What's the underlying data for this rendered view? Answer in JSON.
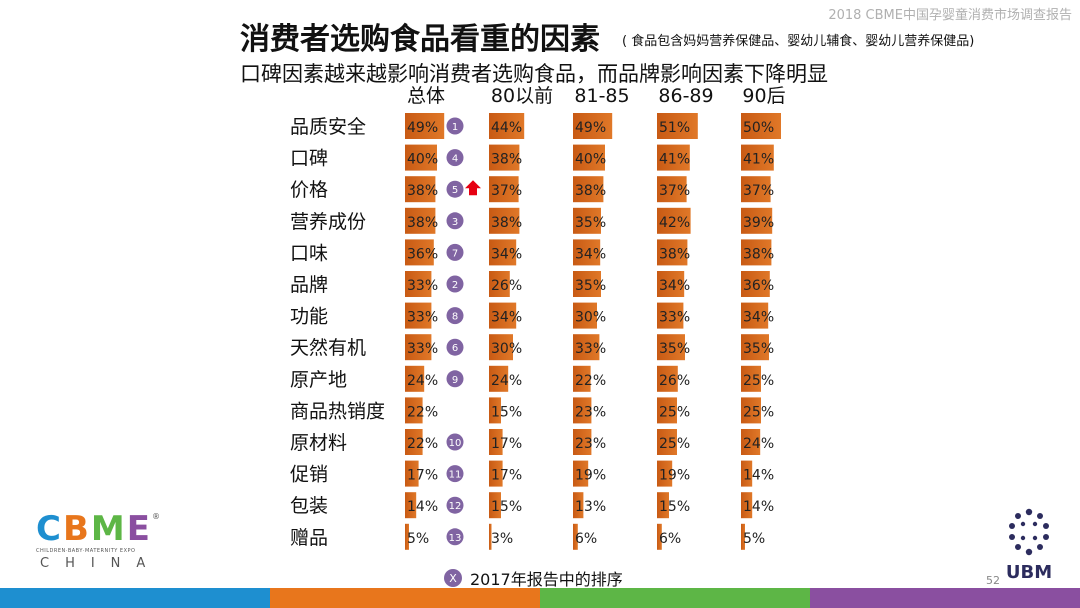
{
  "header": {
    "report_name": "2018 CBME中国孕婴童消费市场调查报告",
    "title": "消费者选购食品看重的因素",
    "title_note": "( 食品包含妈妈营养保健品、婴幼儿辅食、婴幼儿营养保健品)",
    "subtitle": "口碑因素越来越影响消费者选购食品，而品牌影响因素下降明显"
  },
  "chart_data": {
    "type": "bar",
    "orientation": "horizontal",
    "title": "消费者选购食品看重的因素",
    "categories": [
      "品质安全",
      "口碑",
      "价格",
      "营养成份",
      "口味",
      "品牌",
      "功能",
      "天然有机",
      "原产地",
      "商品热销度",
      "原材料",
      "促销",
      "包装",
      "赠品"
    ],
    "series": [
      {
        "name": "总体",
        "values": [
          49,
          40,
          38,
          38,
          36,
          33,
          33,
          33,
          24,
          22,
          22,
          17,
          14,
          5
        ]
      },
      {
        "name": "80以前",
        "values": [
          44,
          38,
          37,
          38,
          34,
          26,
          34,
          30,
          24,
          15,
          17,
          17,
          15,
          3
        ]
      },
      {
        "name": "81-85",
        "values": [
          49,
          40,
          38,
          35,
          34,
          35,
          30,
          33,
          22,
          23,
          23,
          19,
          13,
          6
        ]
      },
      {
        "name": "86-89",
        "values": [
          51,
          41,
          37,
          42,
          38,
          34,
          33,
          35,
          26,
          25,
          25,
          19,
          15,
          6
        ]
      },
      {
        "name": "90后",
        "values": [
          50,
          41,
          37,
          39,
          38,
          36,
          34,
          35,
          25,
          25,
          24,
          14,
          14,
          5
        ]
      }
    ],
    "value_suffix": "%",
    "ranking_2017": [
      "1",
      "4",
      "5",
      "3",
      "7",
      "2",
      "8",
      "6",
      "9",
      "",
      "10",
      "11",
      "12",
      "13"
    ],
    "rank_up_marker_row": 2,
    "xlim": [
      0,
      100
    ]
  },
  "legend": {
    "marker": "X",
    "label": "2017年报告中的排序"
  },
  "logo": {
    "letters": [
      "C",
      "B",
      "M",
      "E"
    ],
    "registered": "®",
    "tagline": "CHILDREN·BABY·MATERNITY EXPO",
    "country": "CHINA"
  },
  "page": {
    "number": "52"
  },
  "brand": {
    "name": "UBM"
  },
  "colors": {
    "bar_light": "#f4a460",
    "bar_dark": "#c85a14",
    "rank_circle": "#8064a2",
    "arrow": "#e60012",
    "bottom_bar": [
      "#1e8fd0",
      "#e8761c",
      "#5db646",
      "#8a4fa0"
    ]
  }
}
